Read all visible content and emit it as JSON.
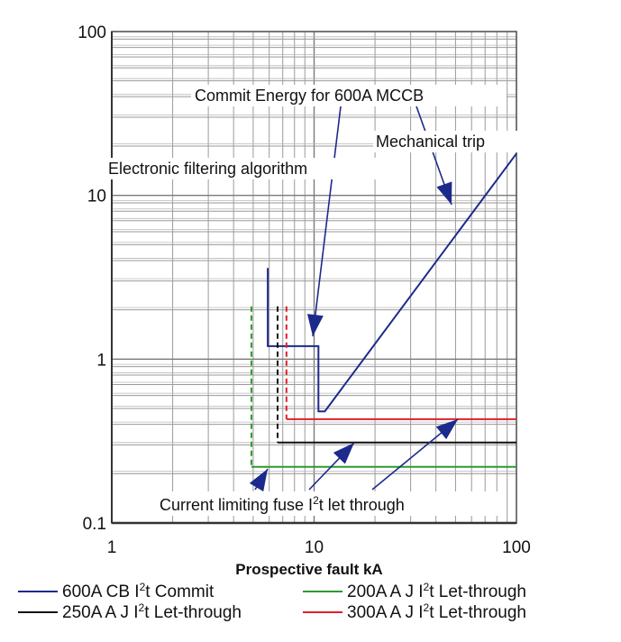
{
  "chart_data": {
    "type": "line",
    "title": "",
    "xlabel": "Prospective fault kA",
    "ylabel": "",
    "x_scale": "log",
    "y_scale": "log",
    "xlim": [
      1,
      100
    ],
    "ylim": [
      0.1,
      100
    ],
    "x_ticks": [
      "1",
      "10",
      "100"
    ],
    "y_ticks": [
      "0.1",
      "1",
      "10",
      "100"
    ],
    "grid": true,
    "legend_position": "bottom",
    "series": [
      {
        "name": "600A CB I²t Commit",
        "legend_main": "600A CB I",
        "legend_tail": "t Commit",
        "color": "#1c2a8c",
        "style": "solid",
        "points": [
          [
            5.9,
            3.6
          ],
          [
            5.9,
            1.2
          ],
          [
            10.5,
            1.2
          ],
          [
            10.5,
            0.48
          ],
          [
            11.3,
            0.48
          ],
          [
            100,
            18
          ]
        ]
      },
      {
        "name": "200A A J I²t Let-through",
        "legend_main": "200A A J I",
        "legend_tail": "t Let-through",
        "color": "#2e9a2e",
        "style": "mixed",
        "points": [
          [
            4.9,
            2.1
          ],
          [
            4.9,
            0.22
          ],
          [
            100,
            0.22
          ]
        ]
      },
      {
        "name": "250A A J I²t Let-through",
        "legend_main": "250A A J I",
        "legend_tail": "t Let-through",
        "color": "#111111",
        "style": "mixed",
        "points": [
          [
            6.6,
            2.1
          ],
          [
            6.6,
            0.31
          ],
          [
            100,
            0.31
          ]
        ]
      },
      {
        "name": "300A A J I²t Let-through",
        "legend_main": "300A A J I",
        "legend_tail": "t Let-through",
        "color": "#e0202a",
        "style": "mixed",
        "points": [
          [
            7.3,
            2.1
          ],
          [
            7.3,
            0.43
          ],
          [
            100,
            0.43
          ]
        ]
      }
    ],
    "annotations": [
      {
        "id": "commit",
        "text": "Commit Energy for 600A MCCB"
      },
      {
        "id": "mech",
        "text": "Mechanical trip"
      },
      {
        "id": "filter",
        "text": "Electronic filtering algorithm"
      },
      {
        "id": "fuse",
        "main": "Current limiting fuse I",
        "sup": "2",
        "tail": "t let through"
      }
    ]
  }
}
